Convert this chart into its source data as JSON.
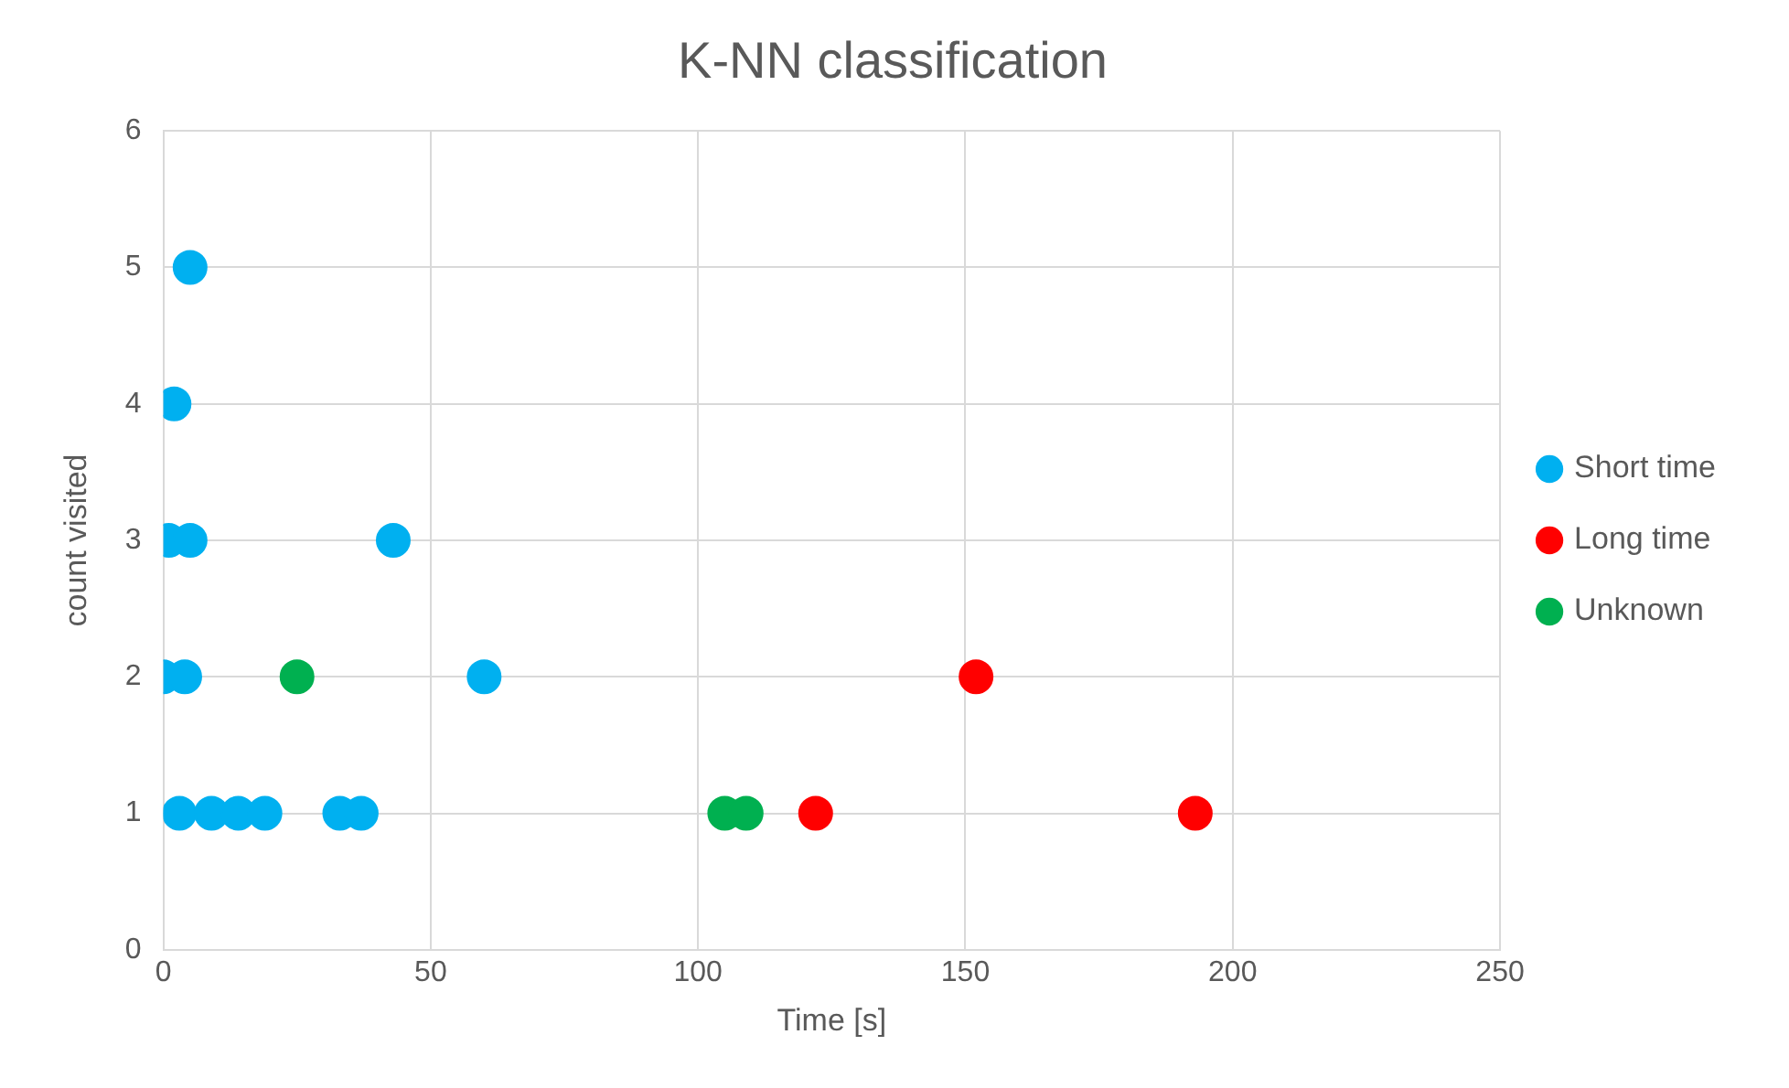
{
  "chart_data": {
    "type": "scatter",
    "title": "K-NN classification",
    "xlabel": "Time [s]",
    "ylabel": "count visited",
    "xlim": [
      0,
      250
    ],
    "xticks": [
      0,
      50,
      100,
      150,
      200,
      250
    ],
    "ylim": [
      0,
      6
    ],
    "yticks": [
      0,
      1,
      2,
      3,
      4,
      5,
      6
    ],
    "grid": true,
    "legend": "right",
    "marker": "circle",
    "series": [
      {
        "name": "Short time",
        "color": "#00b0f0",
        "x": [
          5,
          2,
          1,
          5,
          43,
          0,
          4,
          60,
          3,
          9,
          14,
          19,
          33,
          37
        ],
        "values": [
          5,
          4,
          3,
          3,
          3,
          2,
          2,
          2,
          1,
          1,
          1,
          1,
          1,
          1
        ]
      },
      {
        "name": "Long time",
        "color": "#ff0000",
        "x": [
          152,
          122,
          193
        ],
        "values": [
          2,
          1,
          1
        ]
      },
      {
        "name": "Unknown",
        "color": "#00b050",
        "x": [
          25,
          105,
          109
        ],
        "values": [
          2,
          1,
          1
        ]
      }
    ]
  }
}
